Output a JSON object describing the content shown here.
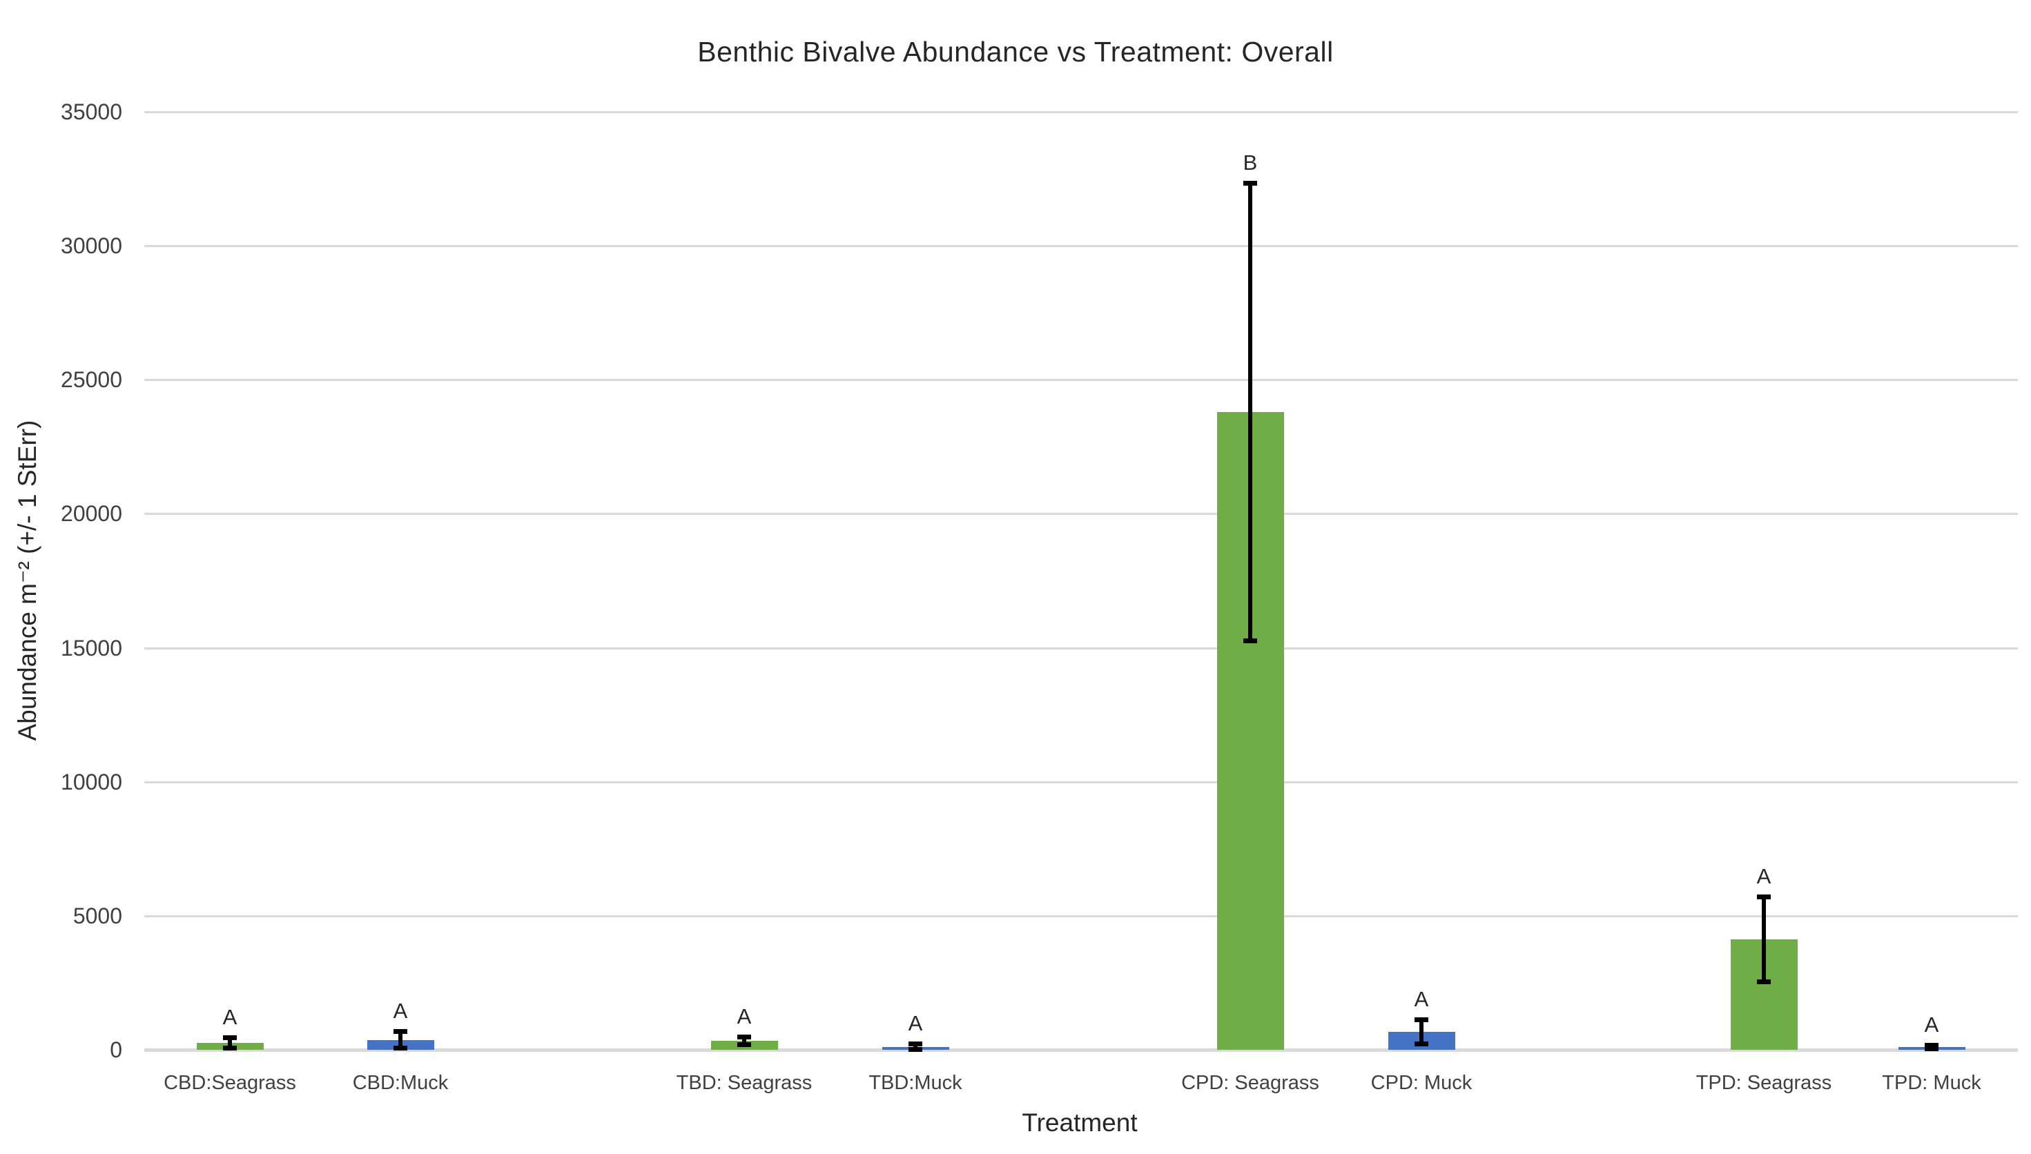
{
  "chart_data": {
    "type": "bar",
    "title": "Benthic Bivalve Abundance vs Treatment: Overall",
    "xlabel": "Treatment",
    "ylabel": "Abundance m⁻² (+/- 1 StErr)",
    "ylim": [
      0,
      35000
    ],
    "ytick_step": 5000,
    "ytick_labels": [
      "0",
      "5000",
      "10000",
      "15000",
      "20000",
      "25000",
      "30000",
      "35000"
    ],
    "grid": true,
    "legend": "none",
    "categories": [
      "CBD:Seagrass",
      "CBD:Muck",
      "TBD: Seagrass",
      "TBD:Muck",
      "CPD: Seagrass",
      "CPD: Muck",
      "TPD: Seagrass",
      "TPD: Muck"
    ],
    "values": [
      260,
      370,
      340,
      105,
      23800,
      670,
      4120,
      110
    ],
    "std_errors": [
      200,
      320,
      160,
      125,
      8550,
      460,
      1600,
      80
    ],
    "sig_letters": [
      "A",
      "A",
      "A",
      "A",
      "B",
      "A",
      "A",
      "A"
    ],
    "bar_colors": [
      "#70ad47",
      "#4472c4",
      "#70ad47",
      "#4472c4",
      "#70ad47",
      "#4472c4",
      "#70ad47",
      "#4472c4"
    ]
  },
  "colors": {
    "seagrass_bar": "#70ad47",
    "muck_bar": "#4472c4",
    "gridline": "#d9d9d9",
    "axis_line": "#d9d9d9",
    "error_bar": "#000000",
    "tick_text": "#404040",
    "title_text": "#262626"
  }
}
